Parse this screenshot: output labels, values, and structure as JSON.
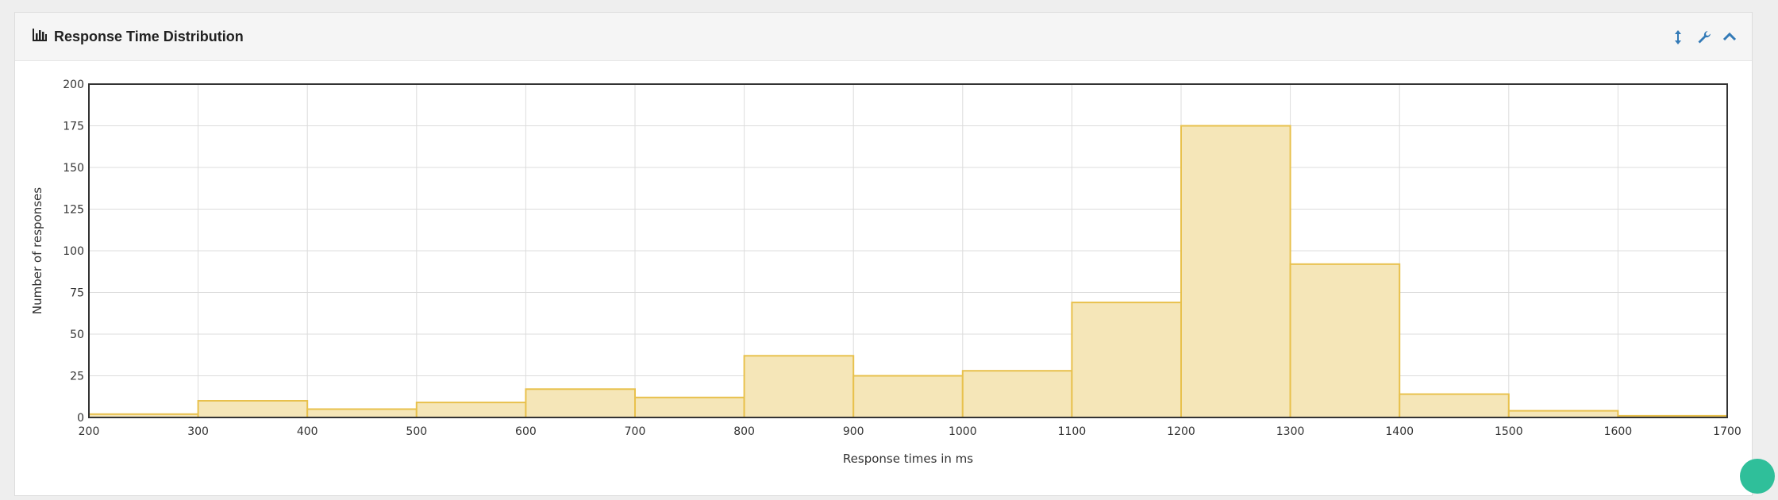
{
  "panel": {
    "title": "Response Time Distribution",
    "icons": [
      "bar-chart-icon",
      "resize-vertical-icon",
      "wrench-icon",
      "chevron-up-icon"
    ]
  },
  "chart_data": {
    "type": "bar",
    "xlabel": "Response times in ms",
    "ylabel": "Number of responses",
    "xlim": [
      200,
      1700
    ],
    "ylim": [
      0,
      200
    ],
    "x_ticks": [
      200,
      300,
      400,
      500,
      600,
      700,
      800,
      900,
      1000,
      1100,
      1200,
      1300,
      1400,
      1500,
      1600,
      1700
    ],
    "y_ticks": [
      0,
      25,
      50,
      75,
      100,
      125,
      150,
      175,
      200
    ],
    "bin_width": 100,
    "bins": [
      200,
      300,
      400,
      500,
      600,
      700,
      800,
      900,
      1000,
      1100,
      1200,
      1300,
      1400,
      1500,
      1600
    ],
    "values": [
      2,
      10,
      5,
      9,
      17,
      12,
      37,
      25,
      28,
      69,
      175,
      92,
      14,
      4,
      1
    ],
    "grid": true,
    "colors": {
      "fill": "#f5e6b8",
      "stroke": "#e8c14d"
    }
  }
}
